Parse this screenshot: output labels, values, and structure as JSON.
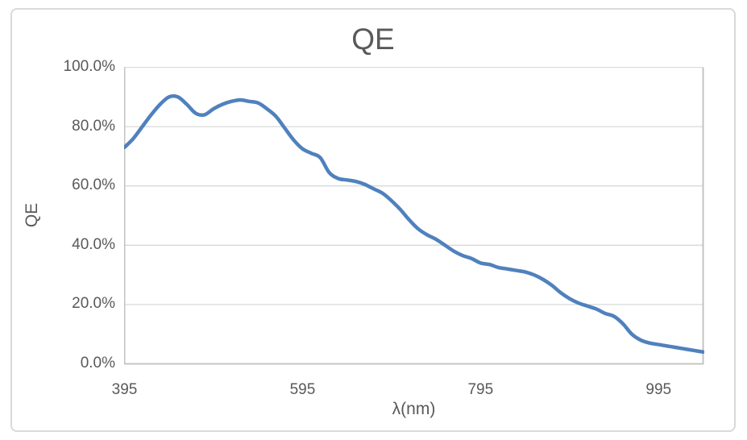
{
  "chart_data": {
    "type": "line",
    "title": "QE",
    "xlabel": "λ(nm)",
    "ylabel": "QE",
    "x_unit": "nm",
    "y_unit": "percent",
    "xlim": [
      395,
      1045
    ],
    "ylim": [
      0,
      100
    ],
    "x_ticks": [
      395,
      595,
      795,
      995
    ],
    "x_tick_labels": [
      "395",
      "595",
      "795",
      "995"
    ],
    "y_ticks": [
      0,
      20,
      40,
      60,
      80,
      100
    ],
    "y_tick_labels": [
      "0.0%",
      "20.0%",
      "40.0%",
      "60.0%",
      "80.0%",
      "100.0%"
    ],
    "grid": "horizontal",
    "legend": "none",
    "smooth_line": true,
    "x": [
      395,
      405,
      415,
      425,
      435,
      445,
      455,
      465,
      475,
      485,
      495,
      505,
      515,
      525,
      535,
      545,
      555,
      565,
      575,
      585,
      595,
      605,
      615,
      625,
      635,
      645,
      655,
      665,
      675,
      685,
      695,
      705,
      715,
      725,
      735,
      745,
      755,
      765,
      775,
      785,
      795,
      805,
      815,
      825,
      835,
      845,
      855,
      865,
      875,
      885,
      895,
      905,
      915,
      925,
      935,
      945,
      955,
      965,
      975,
      985,
      995,
      1005,
      1015,
      1025,
      1035,
      1045
    ],
    "series": [
      {
        "name": "QE",
        "values": [
          73,
          76,
          80,
          84,
          87.5,
          90,
          90,
          87.5,
          84.5,
          84,
          86,
          87.5,
          88.5,
          89,
          88.5,
          88,
          86,
          83.5,
          79.5,
          75.5,
          72.5,
          71,
          69.5,
          64.5,
          62.5,
          62,
          61.5,
          60.5,
          59,
          57.5,
          55,
          52,
          48.5,
          45.5,
          43.5,
          42,
          40,
          38,
          36.5,
          35.5,
          34,
          33.5,
          32.5,
          32,
          31.5,
          31,
          30,
          28.5,
          26.5,
          24,
          22,
          20.5,
          19.5,
          18.5,
          17,
          16,
          13.5,
          10,
          8,
          7,
          6.5,
          6,
          5.5,
          5,
          4.5,
          4
        ]
      }
    ],
    "colors": {
      "line": "#4F81BD",
      "gridline": "#D9D9D9",
      "axis_line": "#BFBFBF",
      "text": "#595959",
      "chart_border": "#D9D9D9",
      "background": "#FFFFFF"
    }
  }
}
